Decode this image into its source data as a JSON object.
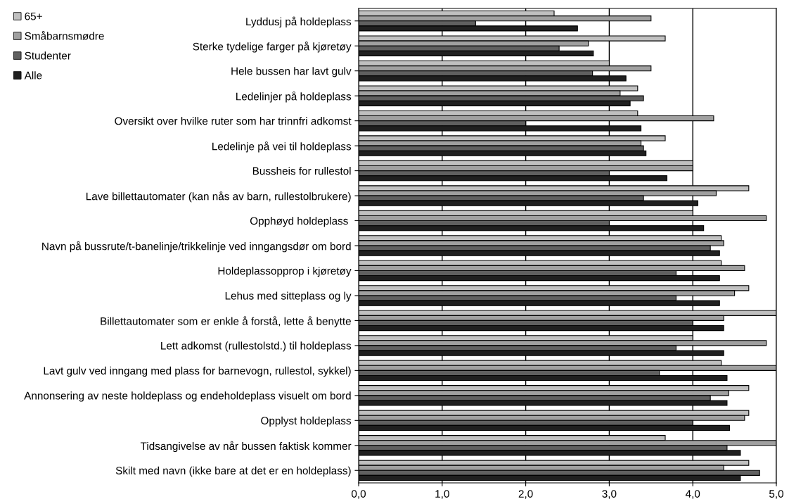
{
  "chart_data": {
    "type": "bar",
    "orientation": "horizontal",
    "categories": [
      "Lyddusj på holdeplass",
      "Sterke tydelige farger på kjøretøy",
      "Hele bussen har lavt gulv",
      "Ledelinjer på holdeplass",
      "Oversikt over hvilke ruter som har trinnfri adkomst",
      "Ledelinje på vei til holdeplass",
      "Bussheis for rullestol",
      "Lave billettautomater (kan nås av barn, rullestolbrukere)",
      "Opphøyd holdeplass ",
      "Navn på bussrute/t-banelinje/trikkelinje ved inngangsdør om bord",
      "Holdeplassopprop i kjøretøy",
      "Lehus med sitteplass og ly",
      "Billettautomater som er enkle å forstå, lette å benytte",
      "Lett adkomst (rullestolstd.) til holdeplass",
      "Lavt gulv ved inngang med plass for barnevogn, rullestol, sykkel)",
      "Annonsering av neste holdeplass og endeholdeplass visuelt om bord",
      "Opplyst holdeplass",
      "Tidsangivelse av når bussen faktisk kommer",
      "Skilt med navn (ikke bare at det er en holdeplass)"
    ],
    "series": [
      {
        "name": "65+",
        "color": "#c0c0c0",
        "values": [
          2.34,
          3.67,
          3.0,
          3.34,
          3.34,
          3.67,
          4.0,
          4.67,
          4.0,
          4.34,
          4.34,
          4.67,
          5.0,
          4.0,
          4.34,
          4.67,
          4.67,
          3.67,
          4.67
        ]
      },
      {
        "name": "Småbarnsmødre",
        "color": "#a0a0a0",
        "values": [
          3.5,
          2.75,
          3.5,
          3.13,
          4.25,
          3.38,
          4.0,
          4.28,
          4.88,
          4.37,
          4.62,
          4.5,
          4.37,
          4.88,
          5.0,
          4.43,
          4.62,
          5.0,
          4.37
        ]
      },
      {
        "name": "Studenter",
        "color": "#606060",
        "values": [
          1.4,
          2.4,
          2.8,
          3.41,
          2.0,
          3.41,
          3.0,
          3.41,
          3.0,
          4.21,
          3.8,
          3.8,
          4.0,
          3.8,
          3.6,
          4.21,
          4.0,
          4.41,
          4.8
        ]
      },
      {
        "name": "Alle",
        "color": "#202020",
        "values": [
          2.62,
          2.81,
          3.2,
          3.25,
          3.38,
          3.44,
          3.69,
          4.06,
          4.13,
          4.32,
          4.32,
          4.32,
          4.37,
          4.37,
          4.41,
          4.41,
          4.44,
          4.57,
          4.57
        ]
      }
    ],
    "xlim": [
      0,
      5
    ],
    "xticks": [
      {
        "value": 0,
        "label": "0,0"
      },
      {
        "value": 1,
        "label": "1,0"
      },
      {
        "value": 2,
        "label": "2,0"
      },
      {
        "value": 3,
        "label": "3,0"
      },
      {
        "value": 4,
        "label": "4,0"
      },
      {
        "value": 5,
        "label": "5,0"
      }
    ],
    "grid": "x",
    "legend": "top left"
  }
}
